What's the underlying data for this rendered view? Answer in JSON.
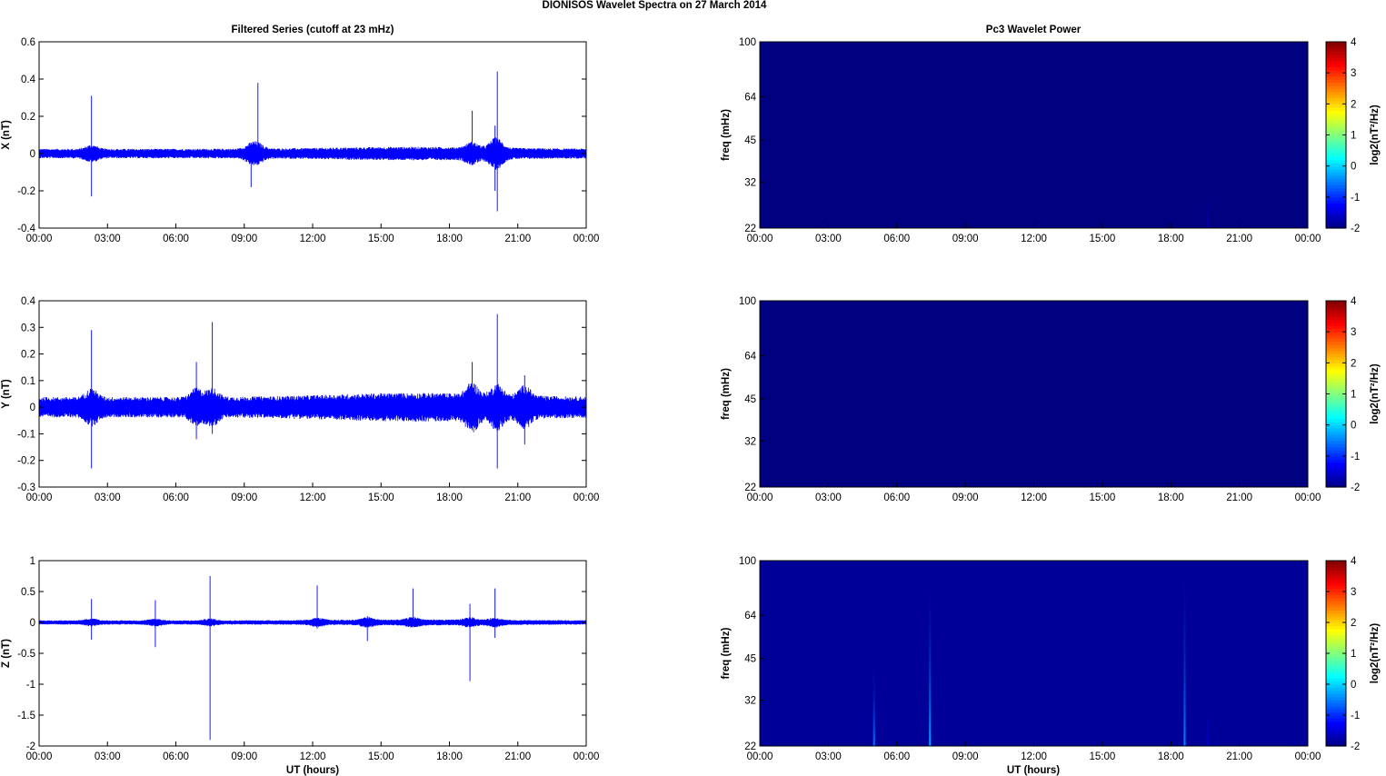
{
  "figure": {
    "title": "DIONISOS Wavelet Spectra on 27 March     2014",
    "left_title": "Filtered Series (cutoff at 23 mHz)",
    "right_title": "Pc3 Wavelet Power",
    "xlabel": "UT (hours)"
  },
  "chart_data": [
    {
      "type": "line",
      "name": "filtered-x",
      "ylabel": "X (nT)",
      "xlim": [
        0,
        24
      ],
      "ylim": [
        -0.4,
        0.6
      ],
      "xticks": [
        "00:00",
        "03:00",
        "06:00",
        "09:00",
        "12:00",
        "15:00",
        "18:00",
        "21:00",
        "00:00"
      ],
      "yticks": [
        -0.4,
        -0.2,
        0,
        0.2,
        0.4,
        0.6
      ],
      "ytick_labels": [
        "-0.4",
        "-0.2",
        "0",
        "0.2",
        "0.4",
        "0.6"
      ],
      "color": "#0000ff",
      "noise_amplitude": 0.03,
      "spikes": [
        {
          "x": 2.3,
          "hi": 0.31,
          "lo": -0.23
        },
        {
          "x": 9.6,
          "hi": 0.38,
          "lo": -0.05
        },
        {
          "x": 9.3,
          "hi": 0.05,
          "lo": -0.18
        },
        {
          "x": 19.0,
          "hi": 0.23,
          "lo": -0.06
        },
        {
          "x": 20.1,
          "hi": 0.44,
          "lo": -0.31
        },
        {
          "x": 20.0,
          "hi": 0.15,
          "lo": -0.2
        }
      ]
    },
    {
      "type": "line",
      "name": "filtered-y",
      "ylabel": "Y (nT)",
      "xlim": [
        0,
        24
      ],
      "ylim": [
        -0.3,
        0.4
      ],
      "xticks": [
        "00:00",
        "03:00",
        "06:00",
        "09:00",
        "12:00",
        "15:00",
        "18:00",
        "21:00",
        "00:00"
      ],
      "yticks": [
        -0.3,
        -0.2,
        -0.1,
        0,
        0.1,
        0.2,
        0.3,
        0.4
      ],
      "ytick_labels": [
        "-0.3",
        "-0.2",
        "-0.1",
        "0",
        "0.1",
        "0.2",
        "0.3",
        "0.4"
      ],
      "color": "#0000ff",
      "noise_amplitude": 0.045,
      "spikes": [
        {
          "x": 2.3,
          "hi": 0.29,
          "lo": -0.23
        },
        {
          "x": 6.9,
          "hi": 0.17,
          "lo": -0.12
        },
        {
          "x": 7.6,
          "hi": 0.32,
          "lo": -0.1
        },
        {
          "x": 19.0,
          "hi": 0.17,
          "lo": -0.08
        },
        {
          "x": 20.1,
          "hi": 0.35,
          "lo": -0.23
        },
        {
          "x": 21.3,
          "hi": 0.12,
          "lo": -0.14
        }
      ]
    },
    {
      "type": "line",
      "name": "filtered-z",
      "ylabel": "Z (nT)",
      "xlim": [
        0,
        24
      ],
      "ylim": [
        -2,
        1
      ],
      "xticks": [
        "00:00",
        "03:00",
        "06:00",
        "09:00",
        "12:00",
        "15:00",
        "18:00",
        "21:00",
        "00:00"
      ],
      "yticks": [
        -2,
        -1.5,
        -1,
        -0.5,
        0,
        0.5,
        1
      ],
      "ytick_labels": [
        "-2",
        "-1.5",
        "-1",
        "-0.5",
        "0",
        "0.5",
        "1"
      ],
      "color": "#0000ff",
      "noise_amplitude": 0.04,
      "spikes": [
        {
          "x": 2.3,
          "hi": 0.38,
          "lo": -0.28
        },
        {
          "x": 5.1,
          "hi": 0.36,
          "lo": -0.4
        },
        {
          "x": 7.5,
          "hi": 0.75,
          "lo": -1.9
        },
        {
          "x": 12.2,
          "hi": 0.6,
          "lo": -0.1
        },
        {
          "x": 14.4,
          "hi": 0.1,
          "lo": -0.3
        },
        {
          "x": 16.4,
          "hi": 0.55,
          "lo": -0.05
        },
        {
          "x": 18.9,
          "hi": 0.3,
          "lo": -0.95
        },
        {
          "x": 20.0,
          "hi": 0.55,
          "lo": -0.25
        }
      ]
    },
    {
      "type": "heatmap",
      "name": "wavelet-x",
      "ylabel": "freq (mHz)",
      "xlim": [
        0,
        24
      ],
      "ylim": [
        22,
        100
      ],
      "yscale": "log",
      "xticks": [
        "00:00",
        "03:00",
        "06:00",
        "09:00",
        "12:00",
        "15:00",
        "18:00",
        "21:00",
        "00:00"
      ],
      "yticks": [
        22,
        32,
        45,
        64,
        100
      ],
      "colorbar": {
        "label": "log2(nT²/Hz)",
        "range": [
          -2,
          4
        ],
        "ticks": [
          "-2",
          "-1",
          "0",
          "1",
          "2",
          "3",
          "4"
        ],
        "colormap": "jet"
      },
      "background_level": -2,
      "streaks": [
        {
          "x": 19.6,
          "f_top": 30,
          "level": -1.7
        }
      ]
    },
    {
      "type": "heatmap",
      "name": "wavelet-y",
      "ylabel": "freq (mHz)",
      "xlim": [
        0,
        24
      ],
      "ylim": [
        22,
        100
      ],
      "yscale": "log",
      "xticks": [
        "00:00",
        "03:00",
        "06:00",
        "09:00",
        "12:00",
        "15:00",
        "18:00",
        "21:00",
        "00:00"
      ],
      "yticks": [
        22,
        32,
        45,
        64,
        100
      ],
      "colorbar": {
        "label": "log2(nT²/Hz)",
        "range": [
          -2,
          4
        ],
        "ticks": [
          "-2",
          "-1",
          "0",
          "1",
          "2",
          "3",
          "4"
        ],
        "colormap": "jet"
      },
      "background_level": -2,
      "streaks": []
    },
    {
      "type": "heatmap",
      "name": "wavelet-z",
      "ylabel": "freq (mHz)",
      "xlim": [
        0,
        24
      ],
      "ylim": [
        22,
        100
      ],
      "yscale": "log",
      "xticks": [
        "00:00",
        "03:00",
        "06:00",
        "09:00",
        "12:00",
        "15:00",
        "18:00",
        "21:00",
        "00:00"
      ],
      "yticks": [
        22,
        32,
        45,
        64,
        100
      ],
      "colorbar": {
        "label": "log2(nT²/Hz)",
        "range": [
          -2,
          4
        ],
        "ticks": [
          "-2",
          "-1",
          "0",
          "1",
          "2",
          "3",
          "4"
        ],
        "colormap": "jet"
      },
      "background_level": -1.85,
      "streaks": [
        {
          "x": 5.0,
          "f_top": 42,
          "level": -0.6
        },
        {
          "x": 7.45,
          "f_top": 80,
          "level": -0.3
        },
        {
          "x": 18.6,
          "f_top": 88,
          "level": -0.5
        },
        {
          "x": 19.6,
          "f_top": 30,
          "level": -1.5
        }
      ]
    }
  ]
}
